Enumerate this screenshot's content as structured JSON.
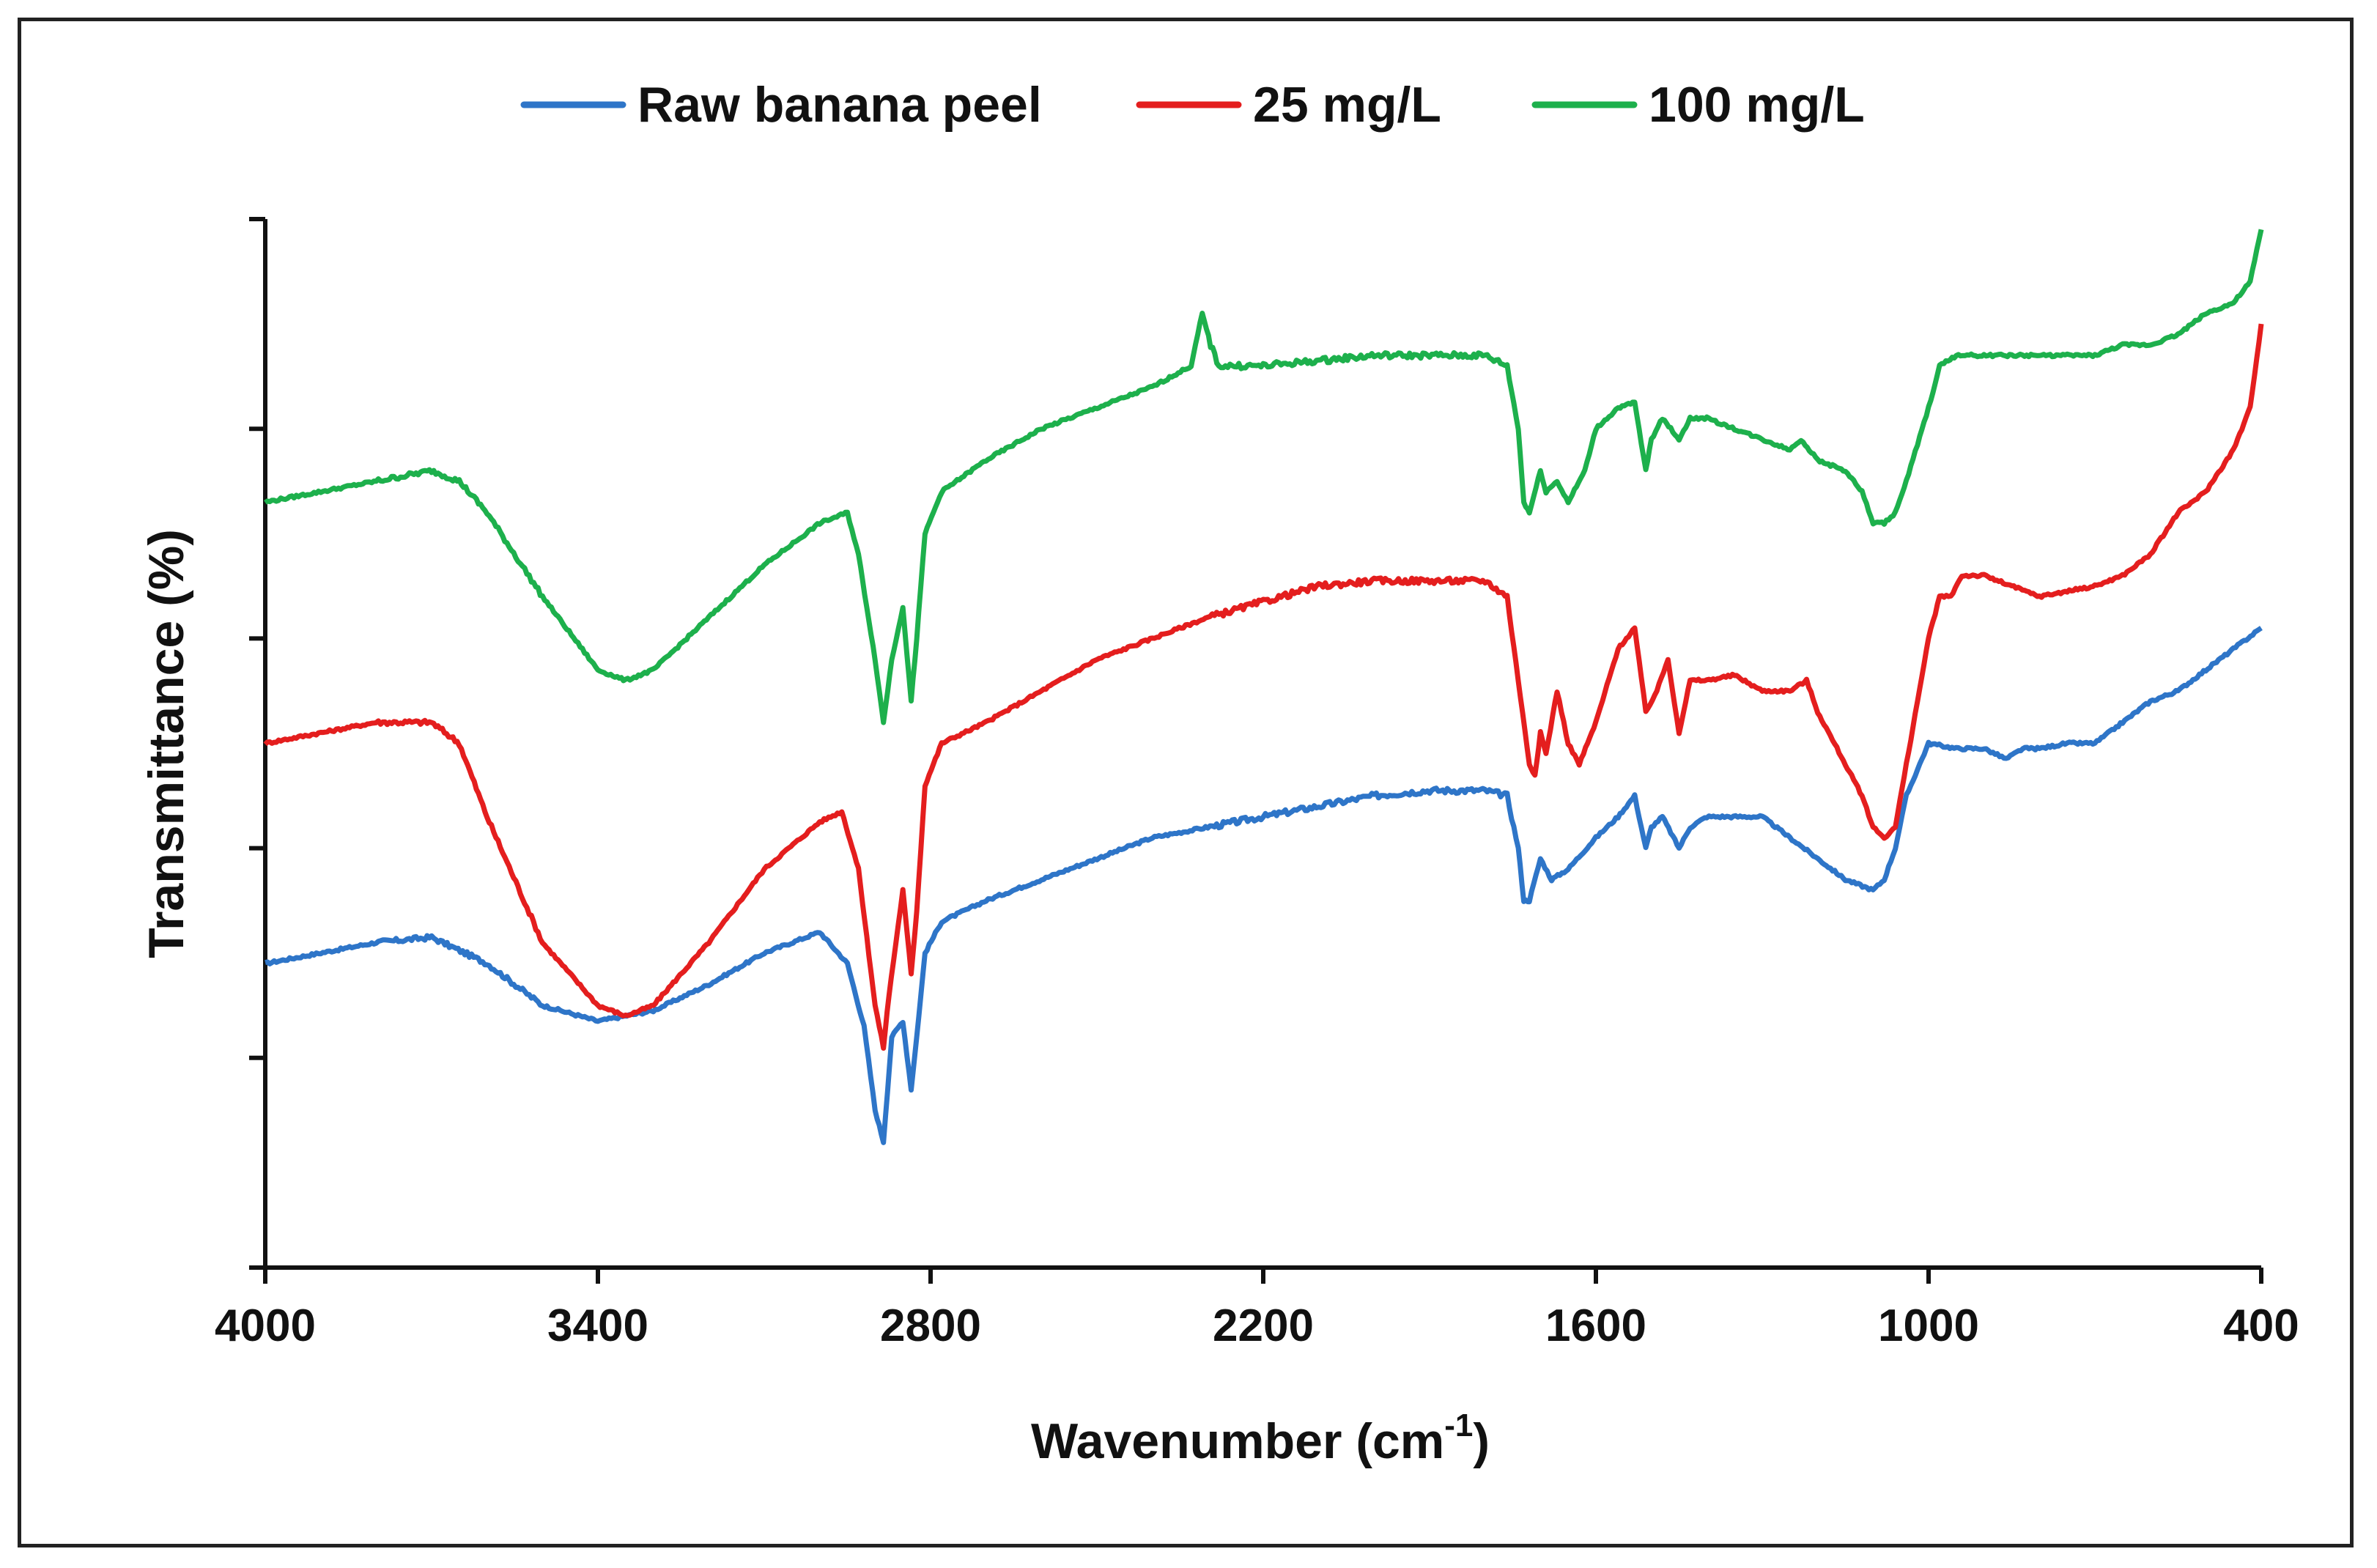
{
  "chart_data": {
    "type": "line",
    "title": "",
    "xlabel": "Wavenumber (cm",
    "xlabel_sup": "-1",
    "xlabel_end": ")",
    "ylabel": "Transmittance (%)",
    "xlim": [
      4000,
      400
    ],
    "x_reversed": true,
    "x_ticks": [
      4000,
      3400,
      2800,
      2200,
      1600,
      1000,
      400
    ],
    "x_tick_labels": [
      "4000",
      "3400",
      "2800",
      "2200",
      "1600",
      "1000",
      "400"
    ],
    "ylim": [
      0,
      100
    ],
    "y_tick_count": 6,
    "y_tick_labels_shown": false,
    "legend_position": "top-center",
    "series": [
      {
        "name": "Raw banana peel",
        "color": "#2E75C8",
        "points": [
          [
            4000,
            29
          ],
          [
            3900,
            30
          ],
          [
            3800,
            31
          ],
          [
            3700,
            31.5
          ],
          [
            3600,
            29
          ],
          [
            3500,
            25
          ],
          [
            3400,
            23.5
          ],
          [
            3300,
            24.5
          ],
          [
            3200,
            27
          ],
          [
            3100,
            30
          ],
          [
            3000,
            32
          ],
          [
            2950,
            29
          ],
          [
            2920,
            23
          ],
          [
            2900,
            15
          ],
          [
            2885,
            12
          ],
          [
            2870,
            22
          ],
          [
            2850,
            23.5
          ],
          [
            2835,
            17
          ],
          [
            2825,
            22
          ],
          [
            2810,
            30
          ],
          [
            2780,
            33
          ],
          [
            2700,
            35
          ],
          [
            2600,
            37
          ],
          [
            2500,
            39
          ],
          [
            2400,
            41
          ],
          [
            2300,
            42
          ],
          [
            2200,
            43
          ],
          [
            2100,
            44
          ],
          [
            2000,
            45
          ],
          [
            1900,
            45.5
          ],
          [
            1800,
            45.5
          ],
          [
            1760,
            45
          ],
          [
            1740,
            40
          ],
          [
            1730,
            35
          ],
          [
            1720,
            35
          ],
          [
            1700,
            39
          ],
          [
            1680,
            37
          ],
          [
            1650,
            38
          ],
          [
            1600,
            41
          ],
          [
            1560,
            43
          ],
          [
            1530,
            45
          ],
          [
            1510,
            40
          ],
          [
            1500,
            42
          ],
          [
            1480,
            43
          ],
          [
            1450,
            40
          ],
          [
            1430,
            42
          ],
          [
            1400,
            43
          ],
          [
            1300,
            43
          ],
          [
            1250,
            41
          ],
          [
            1200,
            39
          ],
          [
            1150,
            37
          ],
          [
            1100,
            36
          ],
          [
            1080,
            37
          ],
          [
            1060,
            40
          ],
          [
            1040,
            45
          ],
          [
            1000,
            50
          ],
          [
            950,
            49.5
          ],
          [
            900,
            49.5
          ],
          [
            860,
            48.5
          ],
          [
            830,
            49.5
          ],
          [
            800,
            49.5
          ],
          [
            750,
            50
          ],
          [
            700,
            50
          ],
          [
            650,
            52
          ],
          [
            600,
            54
          ],
          [
            550,
            55
          ],
          [
            500,
            57
          ],
          [
            450,
            59
          ],
          [
            400,
            61
          ]
        ]
      },
      {
        "name": "25 mg/L",
        "color": "#E41E1E",
        "points": [
          [
            4000,
            50
          ],
          [
            3900,
            51
          ],
          [
            3800,
            52
          ],
          [
            3700,
            52
          ],
          [
            3650,
            50
          ],
          [
            3600,
            43
          ],
          [
            3500,
            31
          ],
          [
            3400,
            25
          ],
          [
            3350,
            24
          ],
          [
            3300,
            25
          ],
          [
            3200,
            31
          ],
          [
            3100,
            38
          ],
          [
            3000,
            42.5
          ],
          [
            2960,
            43.5
          ],
          [
            2930,
            38
          ],
          [
            2900,
            25
          ],
          [
            2885,
            21
          ],
          [
            2875,
            26
          ],
          [
            2850,
            36
          ],
          [
            2835,
            28
          ],
          [
            2825,
            34
          ],
          [
            2810,
            46
          ],
          [
            2780,
            50
          ],
          [
            2700,
            52
          ],
          [
            2600,
            55
          ],
          [
            2500,
            58
          ],
          [
            2400,
            60
          ],
          [
            2300,
            62
          ],
          [
            2200,
            63.5
          ],
          [
            2100,
            65
          ],
          [
            2000,
            65.5
          ],
          [
            1900,
            65.5
          ],
          [
            1800,
            65.5
          ],
          [
            1760,
            64
          ],
          [
            1740,
            56
          ],
          [
            1720,
            48
          ],
          [
            1710,
            47
          ],
          [
            1700,
            51
          ],
          [
            1690,
            49
          ],
          [
            1670,
            55
          ],
          [
            1650,
            50
          ],
          [
            1630,
            48
          ],
          [
            1600,
            52
          ],
          [
            1560,
            59
          ],
          [
            1530,
            61
          ],
          [
            1510,
            53
          ],
          [
            1490,
            55
          ],
          [
            1470,
            58
          ],
          [
            1450,
            51
          ],
          [
            1430,
            56
          ],
          [
            1400,
            56
          ],
          [
            1350,
            56.5
          ],
          [
            1300,
            55
          ],
          [
            1250,
            55
          ],
          [
            1220,
            56
          ],
          [
            1200,
            53
          ],
          [
            1150,
            48
          ],
          [
            1120,
            45
          ],
          [
            1100,
            42
          ],
          [
            1080,
            41
          ],
          [
            1060,
            42
          ],
          [
            1040,
            48
          ],
          [
            1000,
            60
          ],
          [
            980,
            64
          ],
          [
            960,
            64
          ],
          [
            940,
            66
          ],
          [
            900,
            66
          ],
          [
            850,
            65
          ],
          [
            800,
            64
          ],
          [
            750,
            64.5
          ],
          [
            700,
            65
          ],
          [
            650,
            66
          ],
          [
            600,
            68
          ],
          [
            550,
            72
          ],
          [
            500,
            74
          ],
          [
            450,
            78
          ],
          [
            420,
            82
          ],
          [
            400,
            90
          ]
        ]
      },
      {
        "name": "100 mg/L",
        "color": "#1DB04C",
        "points": [
          [
            4000,
            73
          ],
          [
            3900,
            74
          ],
          [
            3800,
            75
          ],
          [
            3700,
            76
          ],
          [
            3650,
            75
          ],
          [
            3600,
            72
          ],
          [
            3500,
            64
          ],
          [
            3400,
            57
          ],
          [
            3350,
            56
          ],
          [
            3300,
            57
          ],
          [
            3200,
            62
          ],
          [
            3100,
            67
          ],
          [
            3000,
            71
          ],
          [
            2950,
            72
          ],
          [
            2930,
            68
          ],
          [
            2900,
            58
          ],
          [
            2885,
            52
          ],
          [
            2870,
            58
          ],
          [
            2850,
            63
          ],
          [
            2835,
            54
          ],
          [
            2825,
            60
          ],
          [
            2810,
            70
          ],
          [
            2780,
            74
          ],
          [
            2700,
            77
          ],
          [
            2600,
            80
          ],
          [
            2500,
            82
          ],
          [
            2400,
            84
          ],
          [
            2330,
            86
          ],
          [
            2310,
            91
          ],
          [
            2295,
            88
          ],
          [
            2280,
            86
          ],
          [
            2200,
            86
          ],
          [
            2100,
            86.5
          ],
          [
            2000,
            87
          ],
          [
            1900,
            87
          ],
          [
            1800,
            87
          ],
          [
            1760,
            86
          ],
          [
            1740,
            80
          ],
          [
            1730,
            73
          ],
          [
            1720,
            72
          ],
          [
            1700,
            76
          ],
          [
            1690,
            74
          ],
          [
            1670,
            75
          ],
          [
            1650,
            73
          ],
          [
            1620,
            76
          ],
          [
            1600,
            80
          ],
          [
            1560,
            82
          ],
          [
            1530,
            82.5
          ],
          [
            1510,
            76
          ],
          [
            1500,
            79
          ],
          [
            1480,
            81
          ],
          [
            1450,
            79
          ],
          [
            1430,
            81
          ],
          [
            1400,
            81
          ],
          [
            1350,
            80
          ],
          [
            1300,
            79
          ],
          [
            1250,
            78
          ],
          [
            1230,
            79
          ],
          [
            1200,
            77
          ],
          [
            1150,
            76
          ],
          [
            1120,
            74
          ],
          [
            1100,
            71
          ],
          [
            1080,
            71
          ],
          [
            1060,
            72
          ],
          [
            1040,
            75
          ],
          [
            1000,
            82
          ],
          [
            980,
            86
          ],
          [
            950,
            87
          ],
          [
            900,
            87
          ],
          [
            850,
            87
          ],
          [
            800,
            87
          ],
          [
            750,
            87
          ],
          [
            700,
            87
          ],
          [
            650,
            88
          ],
          [
            600,
            88
          ],
          [
            550,
            89
          ],
          [
            500,
            91
          ],
          [
            450,
            92
          ],
          [
            420,
            94
          ],
          [
            400,
            99
          ]
        ]
      }
    ]
  }
}
